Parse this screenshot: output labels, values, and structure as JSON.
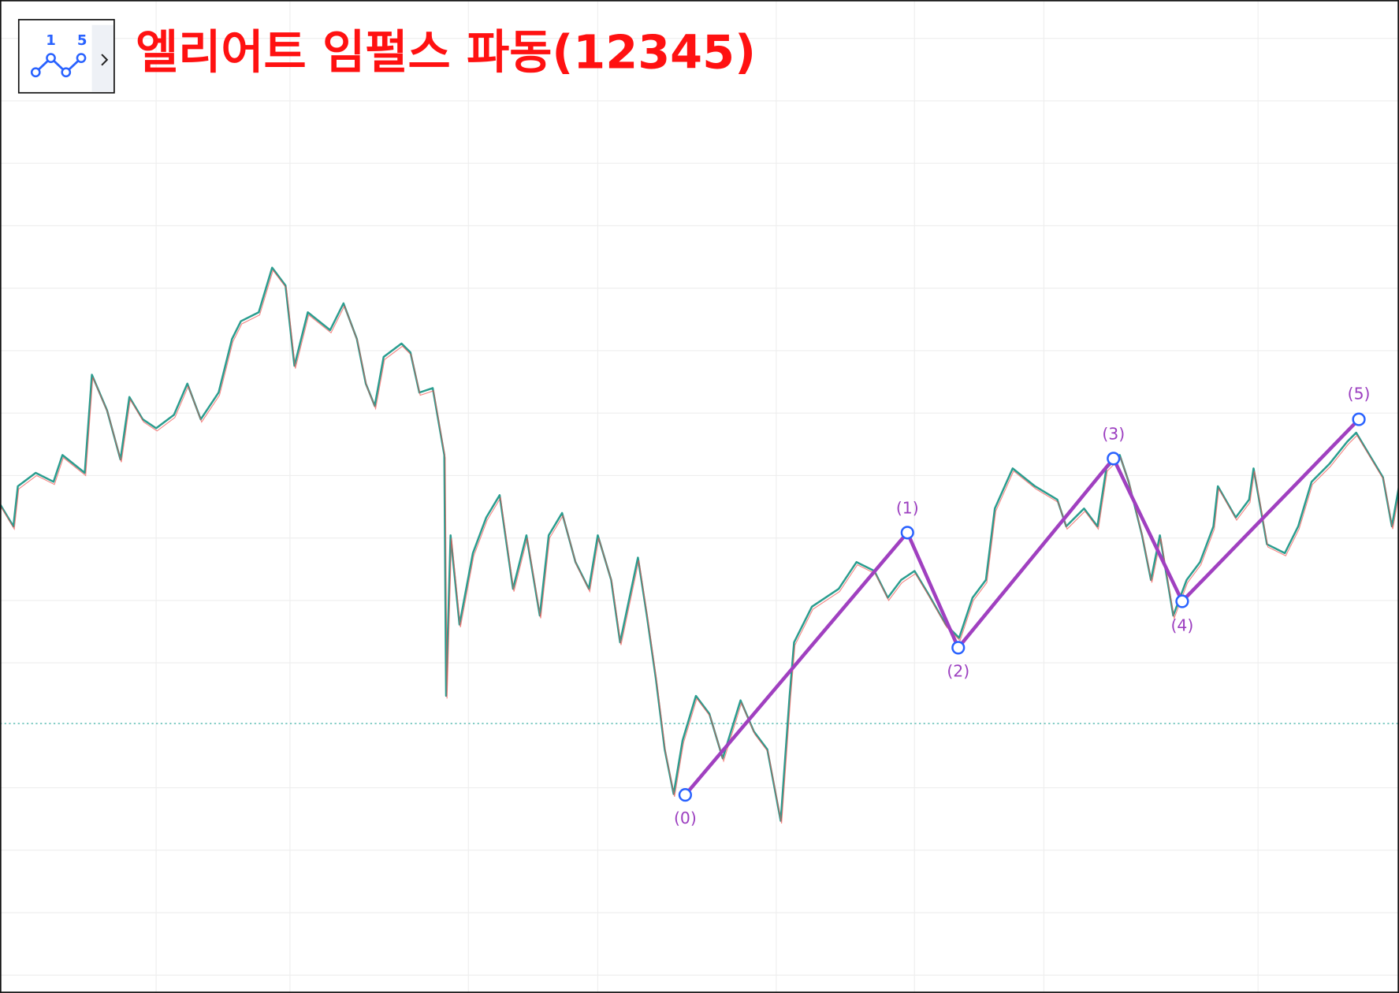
{
  "header": {
    "title": "엘리어트 임펄스 파동(12345)",
    "icon_labels": [
      "1",
      "5"
    ]
  },
  "waves": {
    "labels": [
      "(0)",
      "(1)",
      "(2)",
      "(3)",
      "(4)",
      "(5)"
    ]
  }
}
